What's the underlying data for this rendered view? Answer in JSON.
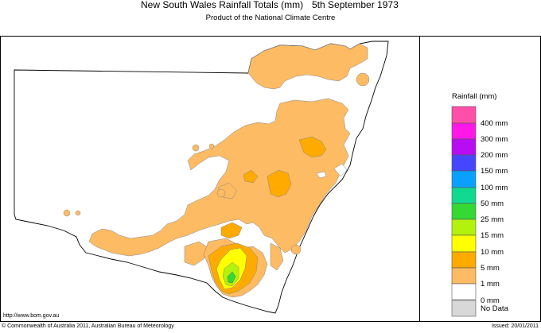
{
  "title": "New South Wales Rainfall Totals (mm)",
  "date": "5th September 1973",
  "subtitle": "Product of the National Climate Centre",
  "legend": {
    "title": "Rainfall (mm)",
    "bands": [
      {
        "label": "400 mm",
        "color": "#ff4fa7"
      },
      {
        "label": "300 mm",
        "color": "#ff18e8"
      },
      {
        "label": "200 mm",
        "color": "#b80cf2"
      },
      {
        "label": "150 mm",
        "color": "#4646ff"
      },
      {
        "label": "100 mm",
        "color": "#0aa0ff"
      },
      {
        "label": "50 mm",
        "color": "#12d990"
      },
      {
        "label": "25 mm",
        "color": "#34d934"
      },
      {
        "label": "15 mm",
        "color": "#b2f20c"
      },
      {
        "label": "10 mm",
        "color": "#ffff00"
      },
      {
        "label": "5 mm",
        "color": "#ffaa00"
      },
      {
        "label": "1 mm",
        "color": "#fdbb63"
      },
      {
        "label": "0 mm",
        "color": "#ffffff"
      }
    ],
    "no_data_label": "No Data",
    "no_data_color": "#d8d8d8"
  },
  "map_colors": {
    "light": "#fdbb63",
    "mid": "#ffaa00",
    "yellow": "#ffff00",
    "lime": "#b2f20c",
    "green": "#34d934"
  },
  "url": "http://www.bom.gov.au",
  "copyright": "© Commonwealth of Australia 2011, Australian Bureau of Meteorology",
  "issued": "Issued: 20/01/2011"
}
